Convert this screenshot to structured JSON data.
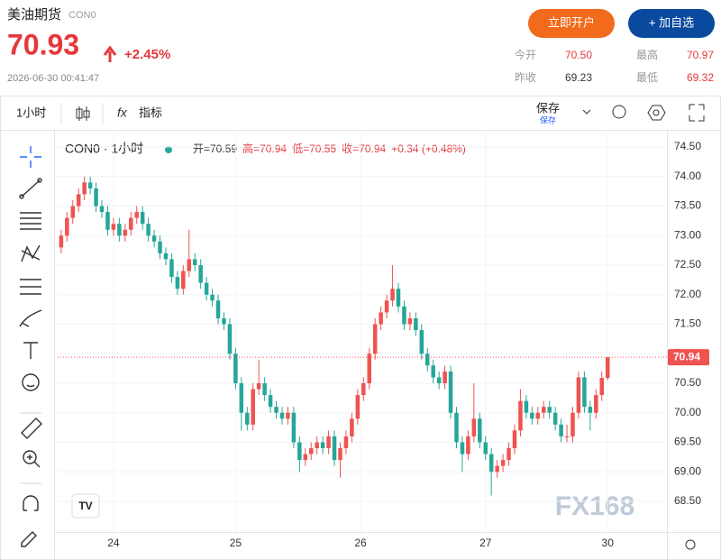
{
  "header": {
    "title": "美油期货",
    "code": "CON0",
    "price": "70.93",
    "change": "+2.45%",
    "time": "2026-06-30 00:41:47",
    "open_account": "立即开户",
    "add_watch": "+ 加自选",
    "stats": [
      {
        "label": "今开",
        "value": "70.50"
      },
      {
        "label": "最高",
        "value": "70.97"
      },
      {
        "label": "昨收",
        "value": "69.23"
      },
      {
        "label": "最低",
        "value": "69.32"
      }
    ]
  },
  "toolbar": {
    "interval": "1小时",
    "indicators": "指标",
    "save": "保存",
    "save_sub": "保存"
  },
  "legend": {
    "symbol": "CON0 · 1小时",
    "items": [
      "开=70.59",
      "高=70.94",
      "低=70.55",
      "收=70.94",
      "+0.34 (+0.48%)"
    ]
  },
  "watermark": "FX168",
  "chart_data": {
    "type": "candlestick",
    "up_color": "#ef5350",
    "down_color": "#26a69a",
    "xlim": [
      -0.6,
      104.2
    ],
    "ylim": [
      67.98,
      74.73
    ],
    "xticks": [
      {
        "value": 9,
        "label": "24"
      },
      {
        "value": 30,
        "label": "25"
      },
      {
        "value": 51.5,
        "label": "26"
      },
      {
        "value": 73,
        "label": "27"
      },
      {
        "value": 94,
        "label": "30"
      }
    ],
    "yticks": [
      {
        "value": 68.5,
        "label": "68.50"
      },
      {
        "value": 69,
        "label": "69.00"
      },
      {
        "value": 69.5,
        "label": "69.50"
      },
      {
        "value": 70,
        "label": "70.00"
      },
      {
        "value": 70.5,
        "label": "70.50"
      },
      {
        "value": 71,
        "label": "71.00"
      },
      {
        "value": 71.5,
        "label": "71.50"
      },
      {
        "value": 72,
        "label": "72.00"
      },
      {
        "value": 72.5,
        "label": "72.50"
      },
      {
        "value": 73,
        "label": "73.00"
      },
      {
        "value": 73.5,
        "label": "73.50"
      },
      {
        "value": 74,
        "label": "74.00"
      },
      {
        "value": 74.5,
        "label": "74.50"
      }
    ],
    "ohlc": [
      [
        72.8,
        73.1,
        72.7,
        73.0
      ],
      [
        73.0,
        73.4,
        72.9,
        73.3
      ],
      [
        73.3,
        73.6,
        73.2,
        73.5
      ],
      [
        73.5,
        73.8,
        73.4,
        73.7
      ],
      [
        73.7,
        74.0,
        73.6,
        73.9
      ],
      [
        73.9,
        74.0,
        73.7,
        73.8
      ],
      [
        73.8,
        73.9,
        73.4,
        73.5
      ],
      [
        73.5,
        73.6,
        73.3,
        73.4
      ],
      [
        73.4,
        73.5,
        73.0,
        73.1
      ],
      [
        73.1,
        73.3,
        73.0,
        73.2
      ],
      [
        73.2,
        73.3,
        72.9,
        73.0
      ],
      [
        73.0,
        73.2,
        72.9,
        73.1
      ],
      [
        73.1,
        73.4,
        73.0,
        73.3
      ],
      [
        73.3,
        73.5,
        73.2,
        73.4
      ],
      [
        73.4,
        73.5,
        73.1,
        73.2
      ],
      [
        73.2,
        73.3,
        72.9,
        73.0
      ],
      [
        73.0,
        73.1,
        72.8,
        72.9
      ],
      [
        72.9,
        73.0,
        72.6,
        72.7
      ],
      [
        72.7,
        72.8,
        72.5,
        72.6
      ],
      [
        72.6,
        72.7,
        72.2,
        72.3
      ],
      [
        72.3,
        72.4,
        72.0,
        72.1
      ],
      [
        72.1,
        72.5,
        72.0,
        72.4
      ],
      [
        72.4,
        73.1,
        72.3,
        72.6
      ],
      [
        72.6,
        72.7,
        72.4,
        72.5
      ],
      [
        72.5,
        72.6,
        72.1,
        72.2
      ],
      [
        72.2,
        72.3,
        71.9,
        72.0
      ],
      [
        72.0,
        72.1,
        71.8,
        71.9
      ],
      [
        71.9,
        72.0,
        71.5,
        71.6
      ],
      [
        71.6,
        71.7,
        71.4,
        71.5
      ],
      [
        71.5,
        71.6,
        70.9,
        71.0
      ],
      [
        71.0,
        71.1,
        70.4,
        70.5
      ],
      [
        70.5,
        70.6,
        69.7,
        70.0
      ],
      [
        70.0,
        70.1,
        69.7,
        69.8
      ],
      [
        69.8,
        70.5,
        69.7,
        70.4
      ],
      [
        70.4,
        70.9,
        70.3,
        70.5
      ],
      [
        70.5,
        70.6,
        70.2,
        70.3
      ],
      [
        70.3,
        70.4,
        70.0,
        70.1
      ],
      [
        70.1,
        70.2,
        69.9,
        70.0
      ],
      [
        70.0,
        70.1,
        69.8,
        69.9
      ],
      [
        69.9,
        70.1,
        69.8,
        70.0
      ],
      [
        70.0,
        70.1,
        69.4,
        69.5
      ],
      [
        69.5,
        69.6,
        69.0,
        69.2
      ],
      [
        69.2,
        69.4,
        69.1,
        69.3
      ],
      [
        69.3,
        69.5,
        69.2,
        69.4
      ],
      [
        69.4,
        69.6,
        69.3,
        69.5
      ],
      [
        69.5,
        69.6,
        69.3,
        69.4
      ],
      [
        69.4,
        69.7,
        69.3,
        69.6
      ],
      [
        69.6,
        69.7,
        69.1,
        69.2
      ],
      [
        69.2,
        69.5,
        68.9,
        69.4
      ],
      [
        69.4,
        69.7,
        69.3,
        69.6
      ],
      [
        69.6,
        70.0,
        69.5,
        69.9
      ],
      [
        69.9,
        70.4,
        69.8,
        70.3
      ],
      [
        70.3,
        70.6,
        70.2,
        70.5
      ],
      [
        70.5,
        71.1,
        70.4,
        71.0
      ],
      [
        71.0,
        71.6,
        70.9,
        71.5
      ],
      [
        71.5,
        71.8,
        71.4,
        71.7
      ],
      [
        71.7,
        72.0,
        71.6,
        71.9
      ],
      [
        71.9,
        72.5,
        71.8,
        72.1
      ],
      [
        72.1,
        72.2,
        71.7,
        71.8
      ],
      [
        71.8,
        71.9,
        71.4,
        71.5
      ],
      [
        71.5,
        71.7,
        71.4,
        71.6
      ],
      [
        71.6,
        71.7,
        71.3,
        71.4
      ],
      [
        71.4,
        71.5,
        70.9,
        71.0
      ],
      [
        71.0,
        71.1,
        70.7,
        70.8
      ],
      [
        70.8,
        70.9,
        70.5,
        70.6
      ],
      [
        70.6,
        70.7,
        70.4,
        70.5
      ],
      [
        70.5,
        70.8,
        70.4,
        70.7
      ],
      [
        70.7,
        70.8,
        69.9,
        70.0
      ],
      [
        70.0,
        70.1,
        69.4,
        69.5
      ],
      [
        69.5,
        69.6,
        69.0,
        69.3
      ],
      [
        69.3,
        69.7,
        69.2,
        69.6
      ],
      [
        69.6,
        70.5,
        69.5,
        69.9
      ],
      [
        69.9,
        70.0,
        69.4,
        69.5
      ],
      [
        69.5,
        69.6,
        69.2,
        69.3
      ],
      [
        69.3,
        69.4,
        68.6,
        69.0
      ],
      [
        69.0,
        69.2,
        68.9,
        69.1
      ],
      [
        69.1,
        69.3,
        69.0,
        69.2
      ],
      [
        69.2,
        69.5,
        69.1,
        69.4
      ],
      [
        69.4,
        69.8,
        69.3,
        69.7
      ],
      [
        69.7,
        70.4,
        69.6,
        70.2
      ],
      [
        70.2,
        70.3,
        69.9,
        70.0
      ],
      [
        70.0,
        70.1,
        69.8,
        69.9
      ],
      [
        69.9,
        70.1,
        69.8,
        70.0
      ],
      [
        70.0,
        70.2,
        69.9,
        70.1
      ],
      [
        70.1,
        70.2,
        69.9,
        70.0
      ],
      [
        70.0,
        70.1,
        69.7,
        69.8
      ],
      [
        69.8,
        69.9,
        69.5,
        69.6
      ],
      [
        69.6,
        69.8,
        69.5,
        69.6
      ],
      [
        69.6,
        70.1,
        69.5,
        70.0
      ],
      [
        70.0,
        70.7,
        69.9,
        70.6
      ],
      [
        70.6,
        70.7,
        70.0,
        70.1
      ],
      [
        70.1,
        70.2,
        69.7,
        70.0
      ],
      [
        70.0,
        70.4,
        69.9,
        70.3
      ],
      [
        70.3,
        70.7,
        70.2,
        70.59
      ],
      [
        70.59,
        70.94,
        70.55,
        70.94
      ]
    ]
  }
}
